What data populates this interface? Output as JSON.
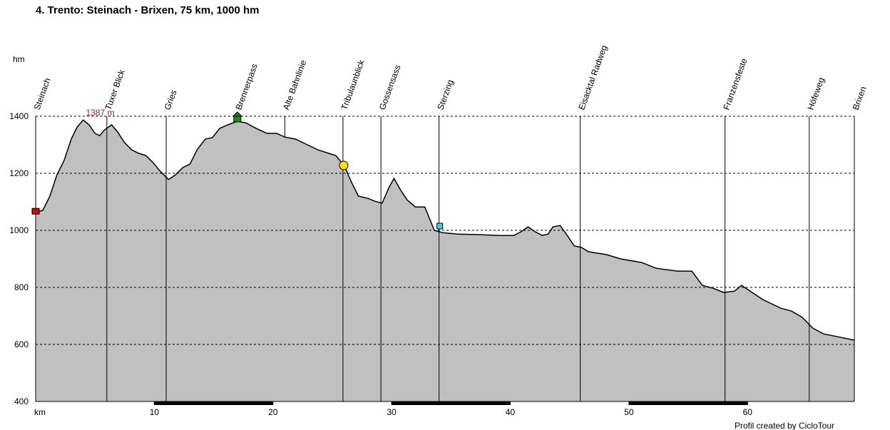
{
  "chart_data": {
    "type": "area",
    "title": "4. Trento: Steinach - Brixen, 75 km, 1000 hm",
    "y_label": "hm",
    "x_label": "km",
    "footer": "Profil created by CicloTour",
    "color": "#c0c0c0",
    "annotation": {
      "text": "1387 m",
      "x": 4.0,
      "y": 1387
    },
    "waypoints": [
      {
        "name": "Steinach",
        "x": 0
      },
      {
        "name": "Tuxer Blick",
        "x": 6.0
      },
      {
        "name": "Gries",
        "x": 11.0
      },
      {
        "name": "Brennerpass",
        "x": 17.0
      },
      {
        "name": "Alte Bahnlinie",
        "x": 21.0
      },
      {
        "name": "Tribulaunblick",
        "x": 25.9
      },
      {
        "name": "Gossensass",
        "x": 29.1
      },
      {
        "name": "Sterzing",
        "x": 34.0
      },
      {
        "name": "Eisacktal Radweg",
        "x": 45.9
      },
      {
        "name": "Franzensfeste",
        "x": 58.1
      },
      {
        "name": "Höfeweg",
        "x": 65.2
      },
      {
        "name": "Brixen",
        "x": 69.0
      }
    ],
    "x": [
      0,
      0.6,
      1.2,
      1.8,
      2.4,
      3.0,
      3.5,
      4.0,
      4.5,
      5.0,
      5.4,
      5.8,
      6.4,
      6.9,
      7.5,
      8.1,
      8.7,
      9.3,
      9.9,
      10.5,
      11.2,
      11.8,
      12.4,
      13.0,
      13.6,
      14.3,
      14.9,
      15.5,
      16.2,
      17.0,
      17.7,
      18.6,
      19.5,
      20.3,
      21.0,
      21.9,
      22.9,
      23.8,
      24.7,
      25.3,
      26.0,
      26.6,
      27.2,
      28.0,
      28.6,
      29.2,
      29.8,
      30.2,
      30.7,
      31.3,
      32.0,
      32.8,
      33.6,
      34.3,
      35.5,
      37.3,
      39.1,
      40.3,
      40.9,
      41.5,
      42.1,
      42.7,
      43.2,
      43.6,
      44.2,
      44.8,
      45.4,
      46.0,
      46.6,
      48.1,
      49.3,
      51.1,
      52.3,
      54.1,
      55.3,
      56.2,
      57.1,
      58.0,
      58.9,
      59.5,
      60.4,
      61.3,
      61.9,
      62.8,
      63.7,
      64.6,
      65.5,
      66.4,
      67.6,
      69.0
    ],
    "values": [
      1062,
      1070,
      1120,
      1195,
      1245,
      1320,
      1362,
      1387,
      1370,
      1340,
      1332,
      1352,
      1370,
      1345,
      1307,
      1282,
      1270,
      1262,
      1237,
      1207,
      1178,
      1195,
      1220,
      1232,
      1282,
      1320,
      1325,
      1357,
      1370,
      1382,
      1377,
      1357,
      1340,
      1340,
      1327,
      1320,
      1300,
      1282,
      1270,
      1262,
      1227,
      1170,
      1120,
      1112,
      1102,
      1095,
      1152,
      1182,
      1145,
      1107,
      1082,
      1082,
      1000,
      992,
      987,
      985,
      982,
      982,
      995,
      1012,
      995,
      982,
      987,
      1012,
      1017,
      982,
      945,
      940,
      925,
      915,
      900,
      887,
      867,
      857,
      857,
      807,
      797,
      782,
      787,
      807,
      782,
      757,
      745,
      727,
      717,
      695,
      657,
      637,
      627,
      615
    ],
    "xlim": [
      0,
      69
    ],
    "ylim": [
      400,
      1400
    ],
    "xticks": [
      10,
      20,
      30,
      40,
      50,
      60
    ],
    "yticks": [
      400,
      600,
      800,
      1000,
      1200,
      1400
    ],
    "grid": true
  }
}
